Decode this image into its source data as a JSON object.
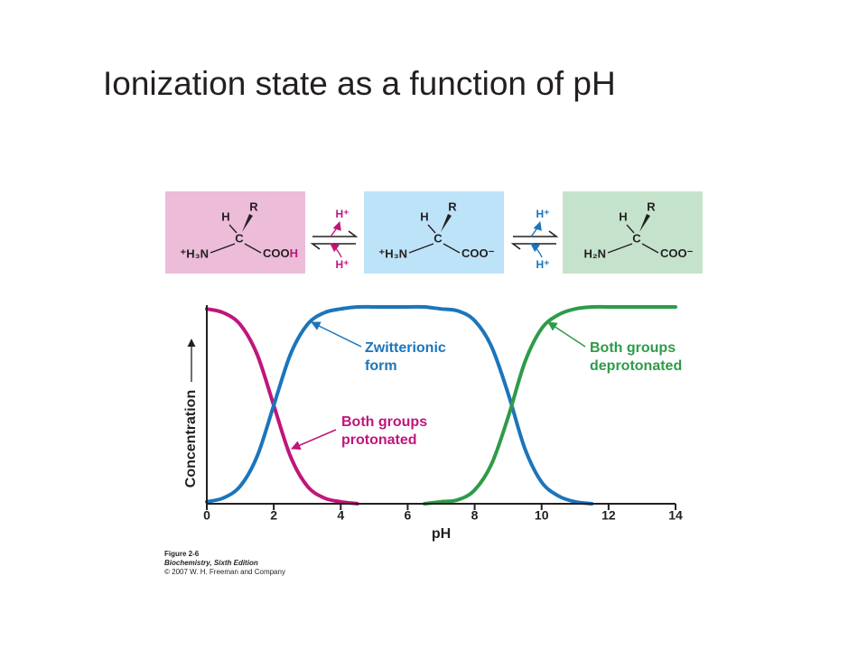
{
  "slide": {
    "title": "Ionization state as a function of pH"
  },
  "structures": [
    {
      "background": "#ecbcd9",
      "h": "H",
      "r": "R",
      "c": "C",
      "left": "⁺H₃N",
      "right": [
        "COO",
        "H"
      ],
      "right_colors": [
        "#231f20",
        "#c0157b"
      ]
    },
    {
      "background": "#bde3f9",
      "h": "H",
      "r": "R",
      "c": "C",
      "left": "⁺H₃N",
      "right": [
        "COO⁻"
      ],
      "right_colors": [
        "#231f20"
      ]
    },
    {
      "background": "#c5e3cc",
      "h": "H",
      "r": "R",
      "c": "C",
      "left": "H₂N",
      "right": [
        "COO⁻"
      ],
      "right_colors": [
        "#231f20"
      ]
    }
  ],
  "equilibria": [
    {
      "top": "H⁺",
      "bottom": "H⁺",
      "color": "#c0157b"
    },
    {
      "top": "H⁺",
      "bottom": "H⁺",
      "color": "#1b75bb"
    }
  ],
  "chart_data": {
    "type": "line",
    "x_label": "pH",
    "y_label": "Concentration",
    "x": [
      0,
      0.5,
      1,
      1.5,
      2,
      2.5,
      3,
      3.5,
      4,
      4.5,
      5,
      5.5,
      6,
      6.5,
      7,
      7.5,
      8,
      8.5,
      9,
      9.5,
      10,
      10.5,
      11,
      11.5,
      12,
      12.5,
      13,
      13.5,
      14
    ],
    "xlim": [
      0,
      14
    ],
    "xticks": [
      0,
      2,
      4,
      6,
      8,
      10,
      12,
      14
    ],
    "ylim": [
      0,
      1
    ],
    "series": [
      {
        "name": "Both groups protonated",
        "label_lines": [
          "Both groups",
          "protonated"
        ],
        "color": "#c0157b",
        "values": [
          0.99,
          0.97,
          0.91,
          0.76,
          0.5,
          0.24,
          0.09,
          0.03,
          0.01,
          0,
          null,
          null,
          null,
          null,
          null,
          null,
          null,
          null,
          null,
          null,
          null,
          null,
          null,
          null,
          null,
          null,
          null,
          null,
          null
        ]
      },
      {
        "name": "Zwitterionic form",
        "label_lines": [
          "Zwitterionic",
          "form"
        ],
        "color": "#1b75bb",
        "values": [
          0.01,
          0.03,
          0.09,
          0.24,
          0.5,
          0.76,
          0.91,
          0.97,
          0.99,
          1,
          1,
          1,
          1,
          1,
          0.99,
          0.98,
          0.93,
          0.8,
          0.56,
          0.28,
          0.11,
          0.04,
          0.01,
          0,
          null,
          null,
          null,
          null,
          null
        ]
      },
      {
        "name": "Both groups deprotonated",
        "label_lines": [
          "Both groups",
          "deprotonated"
        ],
        "color": "#2e9b48",
        "values": [
          null,
          null,
          null,
          null,
          null,
          null,
          null,
          null,
          null,
          null,
          null,
          null,
          null,
          0,
          0.01,
          0.02,
          0.07,
          0.2,
          0.44,
          0.72,
          0.89,
          0.96,
          0.99,
          1,
          1,
          1,
          1,
          1,
          1
        ]
      }
    ]
  },
  "caption": [
    "Figure 2-6",
    "Biochemistry, Sixth Edition",
    "© 2007 W. H. Freeman and Company"
  ]
}
